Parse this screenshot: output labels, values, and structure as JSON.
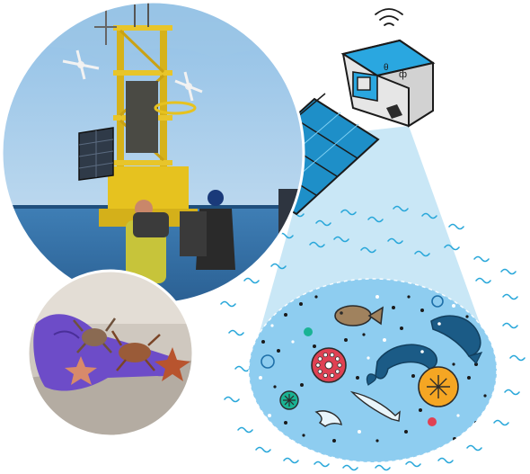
{
  "illustration": {
    "colors": {
      "beam": "#bfe3f5",
      "ocean": "#8ecdf0",
      "wave": "#26a6d9",
      "panel": "#1e8fc8",
      "satellite_body": "#e6e6e6",
      "satellite_blue": "#2aa7e0",
      "sky": "#a9cde8",
      "sea": "#2f6fa5",
      "fish_dark": "#1b5b86",
      "glove": "#6d4cc8"
    },
    "icons": [
      "signal-waves-icon",
      "satellite-icon",
      "solar-panel-icon",
      "fish-icon",
      "flatfish-icon",
      "sea-urchin-icon",
      "starfish-icon",
      "jellyfish-icon"
    ]
  }
}
